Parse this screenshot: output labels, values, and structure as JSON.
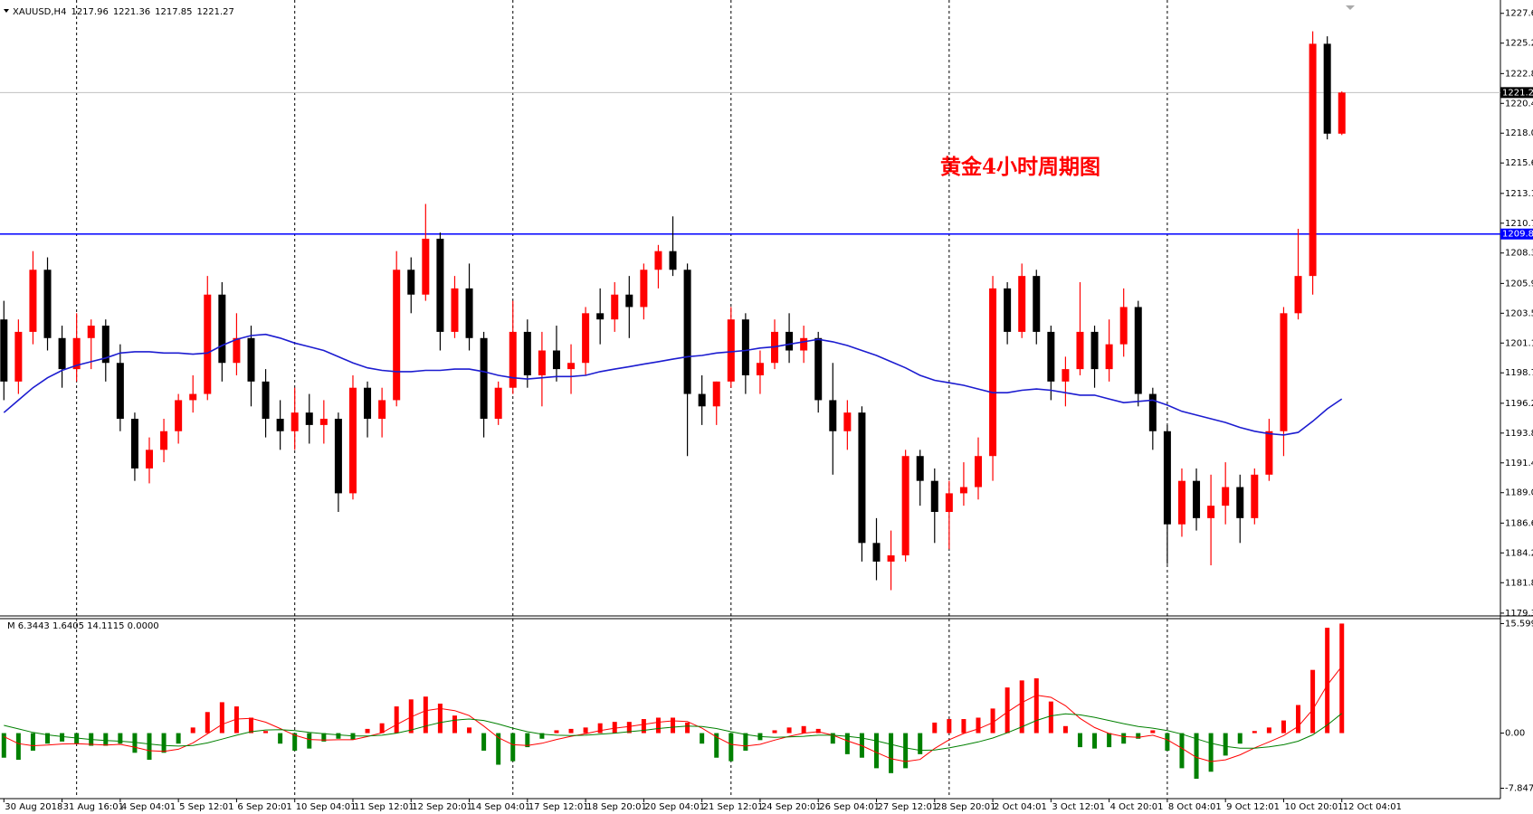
{
  "chart_data": [
    {
      "type": "candlestick",
      "symbol": "XAUUSD,H4",
      "annotation": "黄金4小时周期图",
      "up_color": "#ff0000",
      "down_color": "#000000",
      "level": 1209.88,
      "level_color": "#0000ff",
      "ylim": [
        1179.27,
        1228.36
      ],
      "yticks": [
        1227.65,
        1225.25,
        {
          "value": 1222.8,
          "label": "1222.80"
        },
        {
          "value": 1220.4,
          "label": "1220.40"
        },
        {
          "value": 1218,
          "label": "1218.00"
        },
        {
          "value": 1215.6,
          "label": "1215.60"
        },
        1213.15,
        1210.75,
        1208.35,
        {
          "value": 1205.9,
          "label": "1205.90"
        },
        {
          "value": 1203.5,
          "label": "1203.50"
        },
        {
          "value": 1201.1,
          "label": "1201.10"
        },
        {
          "value": 1198.7,
          "label": "1198.70"
        },
        1196.25,
        1193.85,
        1191.45,
        1189.05,
        {
          "value": 1186.6,
          "label": "1186.60"
        },
        {
          "value": 1184.2,
          "label": "1184.20"
        },
        {
          "value": 1181.8,
          "label": "1181.80"
        },
        1179.35
      ],
      "x": [
        "30 Aug 2018",
        null,
        null,
        null,
        "31 Aug 16:01",
        null,
        null,
        null,
        "4 Sep 04:01",
        null,
        null,
        null,
        "5 Sep 12:01",
        null,
        null,
        null,
        "6 Sep 20:01",
        null,
        null,
        null,
        "10 Sep 04:01",
        null,
        null,
        null,
        "11 Sep 12:01",
        null,
        null,
        null,
        "12 Sep 20:01",
        null,
        null,
        null,
        "14 Sep 04:01",
        null,
        null,
        null,
        "17 Sep 12:01",
        null,
        null,
        null,
        "18 Sep 20:01",
        null,
        null,
        null,
        "20 Sep 04:01",
        null,
        null,
        null,
        "21 Sep 12:01",
        null,
        null,
        null,
        "24 Sep 20:01",
        null,
        null,
        null,
        "26 Sep 04:01",
        null,
        null,
        null,
        "27 Sep 12:01",
        null,
        null,
        null,
        "28 Sep 20:01",
        null,
        null,
        null,
        "2 Oct 04:01",
        null,
        null,
        null,
        "3 Oct 12:01",
        null,
        null,
        null,
        "4 Oct 20:01",
        null,
        null,
        null,
        "8 Oct 04:01",
        null,
        null,
        null,
        "9 Oct 12:01",
        null,
        null,
        null,
        "10 Oct 20:01",
        null,
        null,
        null,
        "12 Oct 04:01"
      ],
      "open": [
        1203,
        1198,
        1202,
        1207,
        1201.5,
        1199,
        1201.5,
        1202.5,
        1199.5,
        1195,
        1191,
        1192.5,
        1194,
        1196.5,
        1197,
        1205,
        1199.5,
        1201.5,
        1198,
        1195,
        1194,
        1195.5,
        1194.5,
        1195,
        1189,
        1197.5,
        1195,
        1196.5,
        1207,
        1205,
        1209.5,
        1202,
        1205.5,
        1201.5,
        1195,
        1197.5,
        1202,
        1198.5,
        1200.5,
        1199,
        1199.5,
        1203.5,
        1203,
        1205,
        1204,
        1207,
        1208.5,
        1207,
        1197,
        1196,
        1198,
        1203,
        1198.5,
        1199.5,
        1202,
        1200.5,
        1201.5,
        1196.5,
        1194,
        1195.5,
        1185,
        1183.5,
        1184,
        1192,
        1190,
        1187.5,
        1189,
        1189.5,
        1192,
        1205.5,
        1202,
        1206.5,
        1202,
        1198,
        1199,
        1202,
        1199,
        1201,
        1204,
        1197,
        1194,
        1186.5,
        1190,
        1187,
        1188,
        1189.5,
        1187,
        1190.5,
        1194,
        1203.5,
        1206.5,
        1225.2,
        1217.96
      ],
      "high": [
        1204.5,
        1203,
        1208.5,
        1208,
        1202.5,
        1203.5,
        1203,
        1203,
        1201,
        1195.5,
        1193.5,
        1195,
        1197,
        1198.5,
        1206.5,
        1206,
        1203.5,
        1202.5,
        1199,
        1196.5,
        1197.5,
        1197,
        1196.5,
        1195.5,
        1198.5,
        1198,
        1197.5,
        1208.5,
        1208,
        1212.3,
        1210,
        1206.5,
        1207.5,
        1202,
        1198,
        1204.5,
        1203,
        1202,
        1202.5,
        1201,
        1204,
        1205.5,
        1206,
        1206.5,
        1207.5,
        1209,
        1211.3,
        1207.5,
        1198.5,
        1198,
        1204,
        1203.5,
        1200.5,
        1203,
        1203.5,
        1202.5,
        1202,
        1199.5,
        1196.5,
        1196,
        1187,
        1186,
        1192.5,
        1192.5,
        1191,
        1190,
        1191.5,
        1193.5,
        1206.5,
        1206,
        1207.5,
        1207,
        1202.5,
        1200,
        1206,
        1202.5,
        1203,
        1205.5,
        1204.5,
        1197.5,
        1194.5,
        1191,
        1191,
        1190.5,
        1191.5,
        1190.5,
        1191,
        1195,
        1204,
        1210.3,
        1226.2,
        1225.8,
        1221.36
      ],
      "low": [
        1196.5,
        1197,
        1201,
        1200.5,
        1197.5,
        1198,
        1199,
        1198,
        1194,
        1190,
        1189.8,
        1191.5,
        1193,
        1195.5,
        1196.5,
        1198,
        1198.5,
        1196,
        1193.5,
        1192.5,
        1192.5,
        1193,
        1193,
        1187.5,
        1188.5,
        1193.5,
        1193.5,
        1196,
        1203.5,
        1204.5,
        1200.5,
        1201.5,
        1200.5,
        1193.5,
        1194.5,
        1197,
        1197.5,
        1196,
        1198,
        1197,
        1198.5,
        1201,
        1202,
        1201.5,
        1203,
        1205.5,
        1206.5,
        1192,
        1194.5,
        1194.5,
        1197.5,
        1197,
        1197,
        1199,
        1199.5,
        1199.5,
        1195.5,
        1190.5,
        1192.5,
        1183.5,
        1182,
        1181.2,
        1183.5,
        1188,
        1185,
        1184.5,
        1188,
        1188.5,
        1190,
        1201,
        1201.5,
        1201,
        1196.5,
        1196,
        1198.5,
        1197.5,
        1198,
        1200,
        1196,
        1192.5,
        1183.3,
        1185.5,
        1186,
        1183.2,
        1186.5,
        1185,
        1186.5,
        1190,
        1192,
        1203,
        1205,
        1217.5,
        1217.85
      ],
      "close": [
        1198,
        1202,
        1207,
        1201.5,
        1199,
        1201.5,
        1202.5,
        1199.5,
        1195,
        1191,
        1192.5,
        1194,
        1196.5,
        1197,
        1205,
        1199.5,
        1201.5,
        1198,
        1195,
        1194,
        1195.5,
        1194.5,
        1195,
        1189,
        1197.5,
        1195,
        1196.5,
        1207,
        1205,
        1209.5,
        1202,
        1205.5,
        1201.5,
        1195,
        1197.5,
        1202,
        1198.5,
        1200.5,
        1199,
        1199.5,
        1203.5,
        1203,
        1205,
        1204,
        1207,
        1208.5,
        1207,
        1197,
        1196,
        1198,
        1203,
        1198.5,
        1199.5,
        1202,
        1200.5,
        1201.5,
        1196.5,
        1194,
        1195.5,
        1185,
        1183.5,
        1184,
        1192,
        1190,
        1187.5,
        1189,
        1189.5,
        1192,
        1205.5,
        1202,
        1206.5,
        1202,
        1198,
        1199,
        1202,
        1199,
        1201,
        1204,
        1197,
        1194,
        1186.5,
        1190,
        1187,
        1188,
        1189.5,
        1187,
        1190.5,
        1194,
        1203.5,
        1206.5,
        1225.2,
        1217.96,
        1221.27
      ],
      "ma": {
        "color": "#1c1cd0",
        "values": [
          1195.5,
          1196.5,
          1197.5,
          1198.3,
          1198.9,
          1199.3,
          1199.6,
          1199.9,
          1200.3,
          1200.4,
          1200.4,
          1200.3,
          1200.3,
          1200.2,
          1200.3,
          1200.9,
          1201.4,
          1201.7,
          1201.8,
          1201.5,
          1201.1,
          1200.8,
          1200.5,
          1200,
          1199.5,
          1199.1,
          1198.9,
          1198.8,
          1198.8,
          1198.9,
          1198.9,
          1199,
          1199,
          1198.8,
          1198.5,
          1198.3,
          1198.2,
          1198.3,
          1198.4,
          1198.4,
          1198.5,
          1198.8,
          1199,
          1199.2,
          1199.4,
          1199.6,
          1199.8,
          1200,
          1200.1,
          1200.3,
          1200.4,
          1200.5,
          1200.7,
          1200.8,
          1201,
          1201.2,
          1201.4,
          1201.2,
          1200.9,
          1200.5,
          1200.1,
          1199.6,
          1199.1,
          1198.5,
          1198.1,
          1197.9,
          1197.7,
          1197.4,
          1197.1,
          1197.1,
          1197.3,
          1197.4,
          1197.3,
          1197.1,
          1196.9,
          1196.9,
          1196.6,
          1196.3,
          1196.4,
          1196.5,
          1196.1,
          1195.6,
          1195.3,
          1195,
          1194.7,
          1194.3,
          1194,
          1193.8,
          1193.7,
          1193.9,
          1194.8,
          1195.8,
          1196.6
        ]
      }
    },
    {
      "type": "histogram",
      "title": "M 6.3443 1.6405 14.1115 0.0000",
      "up_color": "#ff0000",
      "down_color": "#008000",
      "ylim": [
        -9.2,
        16.3
      ],
      "yticks": [
        15.5996,
        {
          "value": 0,
          "label": "0.00"
        },
        -7.8476
      ],
      "values": [
        -3.5,
        -3.8,
        -2.5,
        -1.5,
        -1.2,
        -1.5,
        -1.8,
        -1.8,
        -1.5,
        -2.8,
        -3.8,
        -2.8,
        -1.5,
        0.8,
        3,
        4.4,
        3.8,
        2.2,
        0.3,
        -1.5,
        -2.5,
        -2.2,
        -1.2,
        -0.8,
        -0.9,
        0.6,
        1.4,
        3.8,
        4.8,
        5.2,
        4.2,
        2.5,
        0.8,
        -2.5,
        -4.5,
        -4,
        -2,
        -0.8,
        0.4,
        0.6,
        0.8,
        1.4,
        1.6,
        1.6,
        2,
        2.2,
        2.2,
        1.5,
        -1.5,
        -3.5,
        -4,
        -2.5,
        -1,
        0.4,
        0.8,
        1,
        0.6,
        -1.5,
        -3,
        -3.5,
        -5,
        -5.7,
        -5,
        -3,
        1.5,
        2,
        2,
        2.2,
        3.5,
        6.5,
        7.5,
        7.8,
        4.5,
        1,
        -2,
        -2.2,
        -2,
        -1.5,
        -0.8,
        0.4,
        -2.5,
        -5,
        -6.5,
        -5.5,
        -3.2,
        -1.5,
        0.3,
        0.8,
        1.8,
        4,
        9,
        15,
        15.6
      ],
      "lines": [
        {
          "color": "#ff0000",
          "values": [
            -0.5,
            -1.5,
            -1.8,
            -1.7,
            -1.55,
            -1.5,
            -1.6,
            -1.7,
            -1.6,
            -2,
            -2.5,
            -2.6,
            -2.3,
            -1.4,
            -0.1,
            1.25,
            2,
            2.1,
            1.55,
            0.65,
            -0.3,
            -0.9,
            -1,
            -0.95,
            -0.95,
            -0.5,
            0.05,
            1.2,
            2.3,
            3.2,
            3.5,
            3.2,
            2.5,
            1,
            -0.65,
            -1.65,
            -1.75,
            -1.45,
            -0.9,
            -0.45,
            -0.1,
            0.35,
            0.7,
            0.95,
            1.25,
            1.55,
            1.75,
            1.65,
            0.7,
            -0.55,
            -1.6,
            -1.85,
            -1.6,
            -1,
            -0.45,
            0,
            0.2,
            -0.3,
            -1.1,
            -1.8,
            -2.75,
            -3.65,
            -4.05,
            -3.75,
            -2.2,
            -0.95,
            -0.05,
            0.6,
            1.5,
            3,
            4.35,
            5.4,
            5.1,
            3.9,
            2.1,
            0.8,
            -0.05,
            -0.5,
            -0.6,
            -0.3,
            -0.95,
            -2.15,
            -3.45,
            -4.05,
            -3.8,
            -3.1,
            -2.1,
            -1.25,
            -0.35,
            0.95,
            3.35,
            6.85,
            9.5
          ]
        },
        {
          "color": "#008000",
          "values": [
            1.1,
            0.6,
            0.1,
            -0.25,
            -0.5,
            -0.7,
            -0.9,
            -1.05,
            -1.15,
            -1.3,
            -1.55,
            -1.75,
            -1.85,
            -1.75,
            -1.4,
            -0.85,
            -0.3,
            0.2,
            0.45,
            0.5,
            0.35,
            0.1,
            -0.1,
            -0.25,
            -0.4,
            -0.4,
            -0.3,
            0,
            0.45,
            1,
            1.5,
            1.85,
            2,
            1.8,
            1.3,
            0.7,
            0.2,
            -0.15,
            -0.3,
            -0.35,
            -0.3,
            -0.15,
            0,
            0.2,
            0.4,
            0.65,
            0.85,
            1,
            0.95,
            0.65,
            0.2,
            -0.2,
            -0.5,
            -0.6,
            -0.55,
            -0.45,
            -0.3,
            -0.3,
            -0.45,
            -0.7,
            -1.1,
            -1.6,
            -2.1,
            -2.45,
            -2.4,
            -2.1,
            -1.7,
            -1.25,
            -0.7,
            0.05,
            0.9,
            1.8,
            2.45,
            2.75,
            2.6,
            2.25,
            1.8,
            1.35,
            0.95,
            0.7,
            0.35,
            -0.15,
            -0.8,
            -1.45,
            -1.9,
            -2.15,
            -2.15,
            -1.95,
            -1.65,
            -1.15,
            -0.25,
            1.15,
            2.8
          ]
        }
      ]
    }
  ]
}
